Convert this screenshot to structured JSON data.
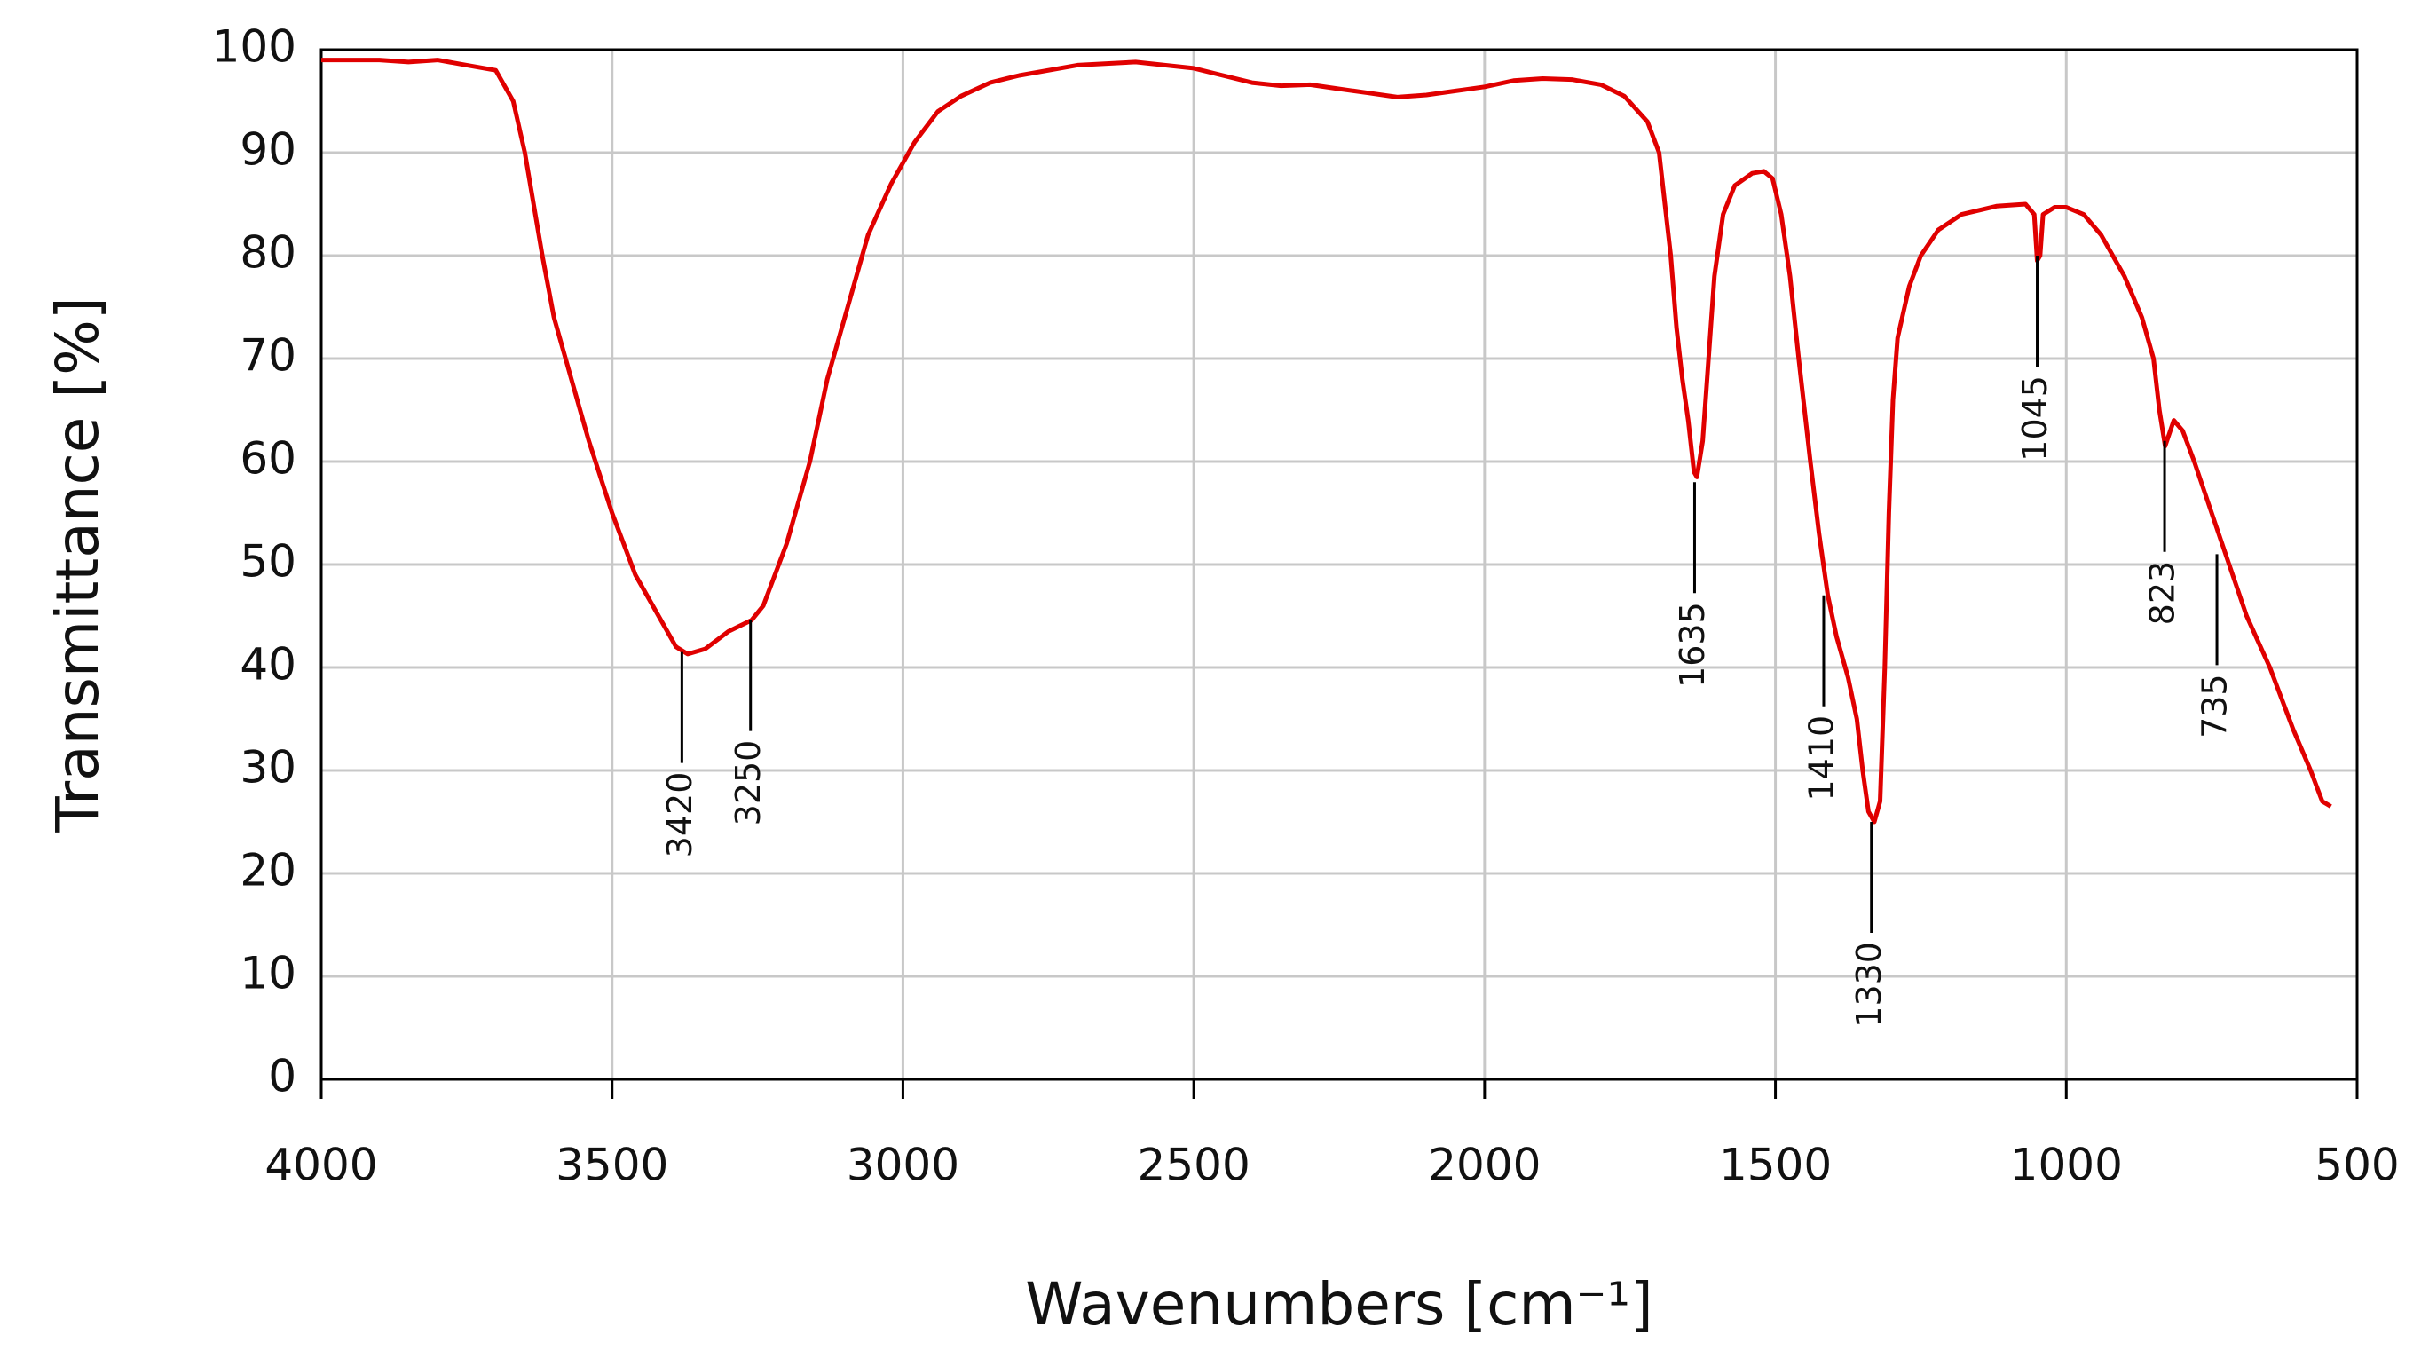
{
  "chart_data": {
    "type": "line",
    "x_label": "Wavenumbers [cm⁻¹]",
    "y_label": "Transmittance [%]",
    "xlim": [
      4000,
      500
    ],
    "ylim": [
      0,
      100
    ],
    "xticks": [
      4000,
      3500,
      3000,
      2500,
      2000,
      1500,
      1000,
      500
    ],
    "yticks": [
      0,
      10,
      20,
      30,
      40,
      50,
      60,
      70,
      80,
      90,
      100
    ],
    "grid": true,
    "x": [
      4000,
      3900,
      3850,
      3800,
      3750,
      3700,
      3670,
      3650,
      3620,
      3600,
      3570,
      3540,
      3500,
      3460,
      3420,
      3390,
      3370,
      3340,
      3300,
      3260,
      3240,
      3200,
      3160,
      3130,
      3100,
      3060,
      3020,
      2980,
      2940,
      2900,
      2850,
      2800,
      2700,
      2600,
      2500,
      2450,
      2400,
      2350,
      2300,
      2250,
      2200,
      2150,
      2100,
      2050,
      2000,
      1950,
      1900,
      1850,
      1800,
      1760,
      1720,
      1700,
      1690,
      1680,
      1670,
      1660,
      1650,
      1640,
      1635,
      1625,
      1615,
      1605,
      1590,
      1570,
      1540,
      1520,
      1505,
      1490,
      1475,
      1460,
      1440,
      1425,
      1410,
      1395,
      1375,
      1360,
      1350,
      1340,
      1330,
      1320,
      1312,
      1305,
      1298,
      1290,
      1270,
      1250,
      1220,
      1180,
      1120,
      1070,
      1055,
      1050,
      1045,
      1040,
      1020,
      1000,
      970,
      940,
      900,
      870,
      850,
      840,
      830,
      815,
      800,
      780,
      750,
      720,
      690,
      650,
      610,
      580,
      560,
      545
    ],
    "series": [
      {
        "color": "#e00000",
        "values": [
          99,
          99,
          98.8,
          99,
          98.5,
          98,
          95,
          90,
          80,
          74,
          68,
          62,
          55,
          49,
          45,
          42,
          41.3,
          41.8,
          43.5,
          44.6,
          46,
          52,
          60,
          68,
          74,
          82,
          87,
          91,
          94,
          95.5,
          96.8,
          97.5,
          98.5,
          98.8,
          98.2,
          97.5,
          96.8,
          96.5,
          96.6,
          96.2,
          95.8,
          95.4,
          95.6,
          96,
          96.4,
          97,
          97.2,
          97.1,
          96.6,
          95.5,
          93,
          90,
          85,
          80,
          73,
          68,
          64,
          59,
          58.5,
          62,
          70,
          78,
          84,
          86.8,
          88,
          88.2,
          87.5,
          84,
          78,
          70,
          60,
          53,
          47,
          43,
          39,
          35,
          30,
          26,
          25,
          27,
          40,
          55,
          66,
          72,
          77,
          80,
          82.5,
          84,
          84.8,
          85,
          84,
          79.5,
          80,
          84,
          84.7,
          84.7,
          84,
          82,
          78,
          74,
          70,
          65,
          61.5,
          64,
          63,
          60,
          55,
          50,
          45,
          40,
          34,
          30,
          27,
          26.5
        ]
      }
    ],
    "annotations": [
      {
        "label": "3420",
        "x": 3380,
        "y": 41.5
      },
      {
        "label": "3250",
        "x": 3262,
        "y": 44.6
      },
      {
        "label": "1635",
        "x": 1639,
        "y": 58
      },
      {
        "label": "1410",
        "x": 1417,
        "y": 47
      },
      {
        "label": "1330",
        "x": 1335,
        "y": 25
      },
      {
        "label": "1045",
        "x": 1050,
        "y": 80
      },
      {
        "label": "823",
        "x": 831,
        "y": 62
      },
      {
        "label": "735",
        "x": 741,
        "y": 51
      }
    ]
  }
}
